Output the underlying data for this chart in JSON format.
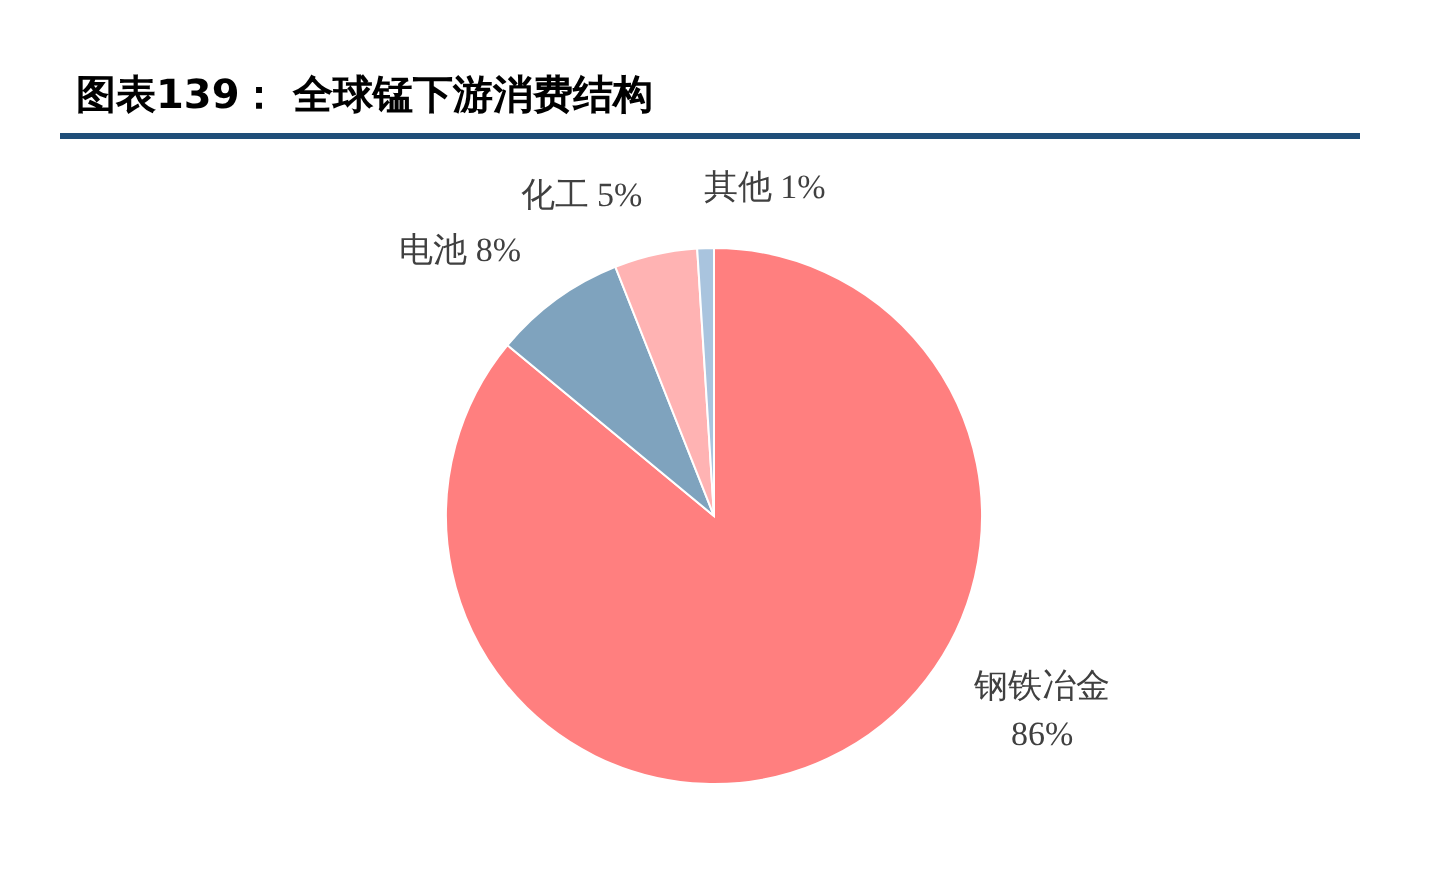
{
  "chart_data": {
    "type": "pie",
    "title": "图表139：  全球锰下游消费结构",
    "categories": [
      "钢铁冶金",
      "电池",
      "化工",
      "其他"
    ],
    "values": [
      86,
      8,
      5,
      1
    ],
    "value_labels": [
      "86%",
      "8%",
      "5%",
      "1%"
    ],
    "colors": [
      "#ff7f7f",
      "#7fa3be",
      "#ffb3b3",
      "#a9c4de"
    ],
    "legend": false
  }
}
